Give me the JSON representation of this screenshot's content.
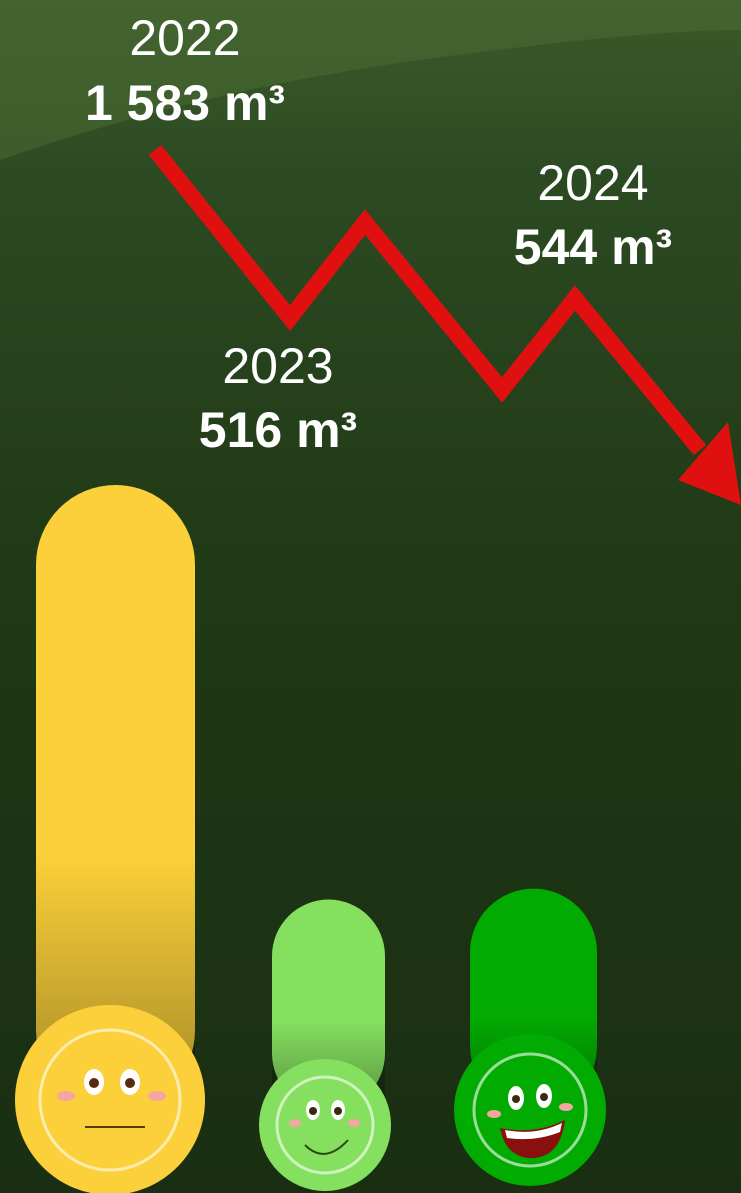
{
  "chart_data": {
    "type": "bar",
    "categories": [
      "2022",
      "2023",
      "2024"
    ],
    "values": [
      1583,
      516,
      544
    ],
    "value_labels": [
      "1 583 m³",
      "516 m³",
      "544 m³"
    ],
    "colors": [
      "#fbd03a",
      "#86e060",
      "#02ab02"
    ]
  }
}
